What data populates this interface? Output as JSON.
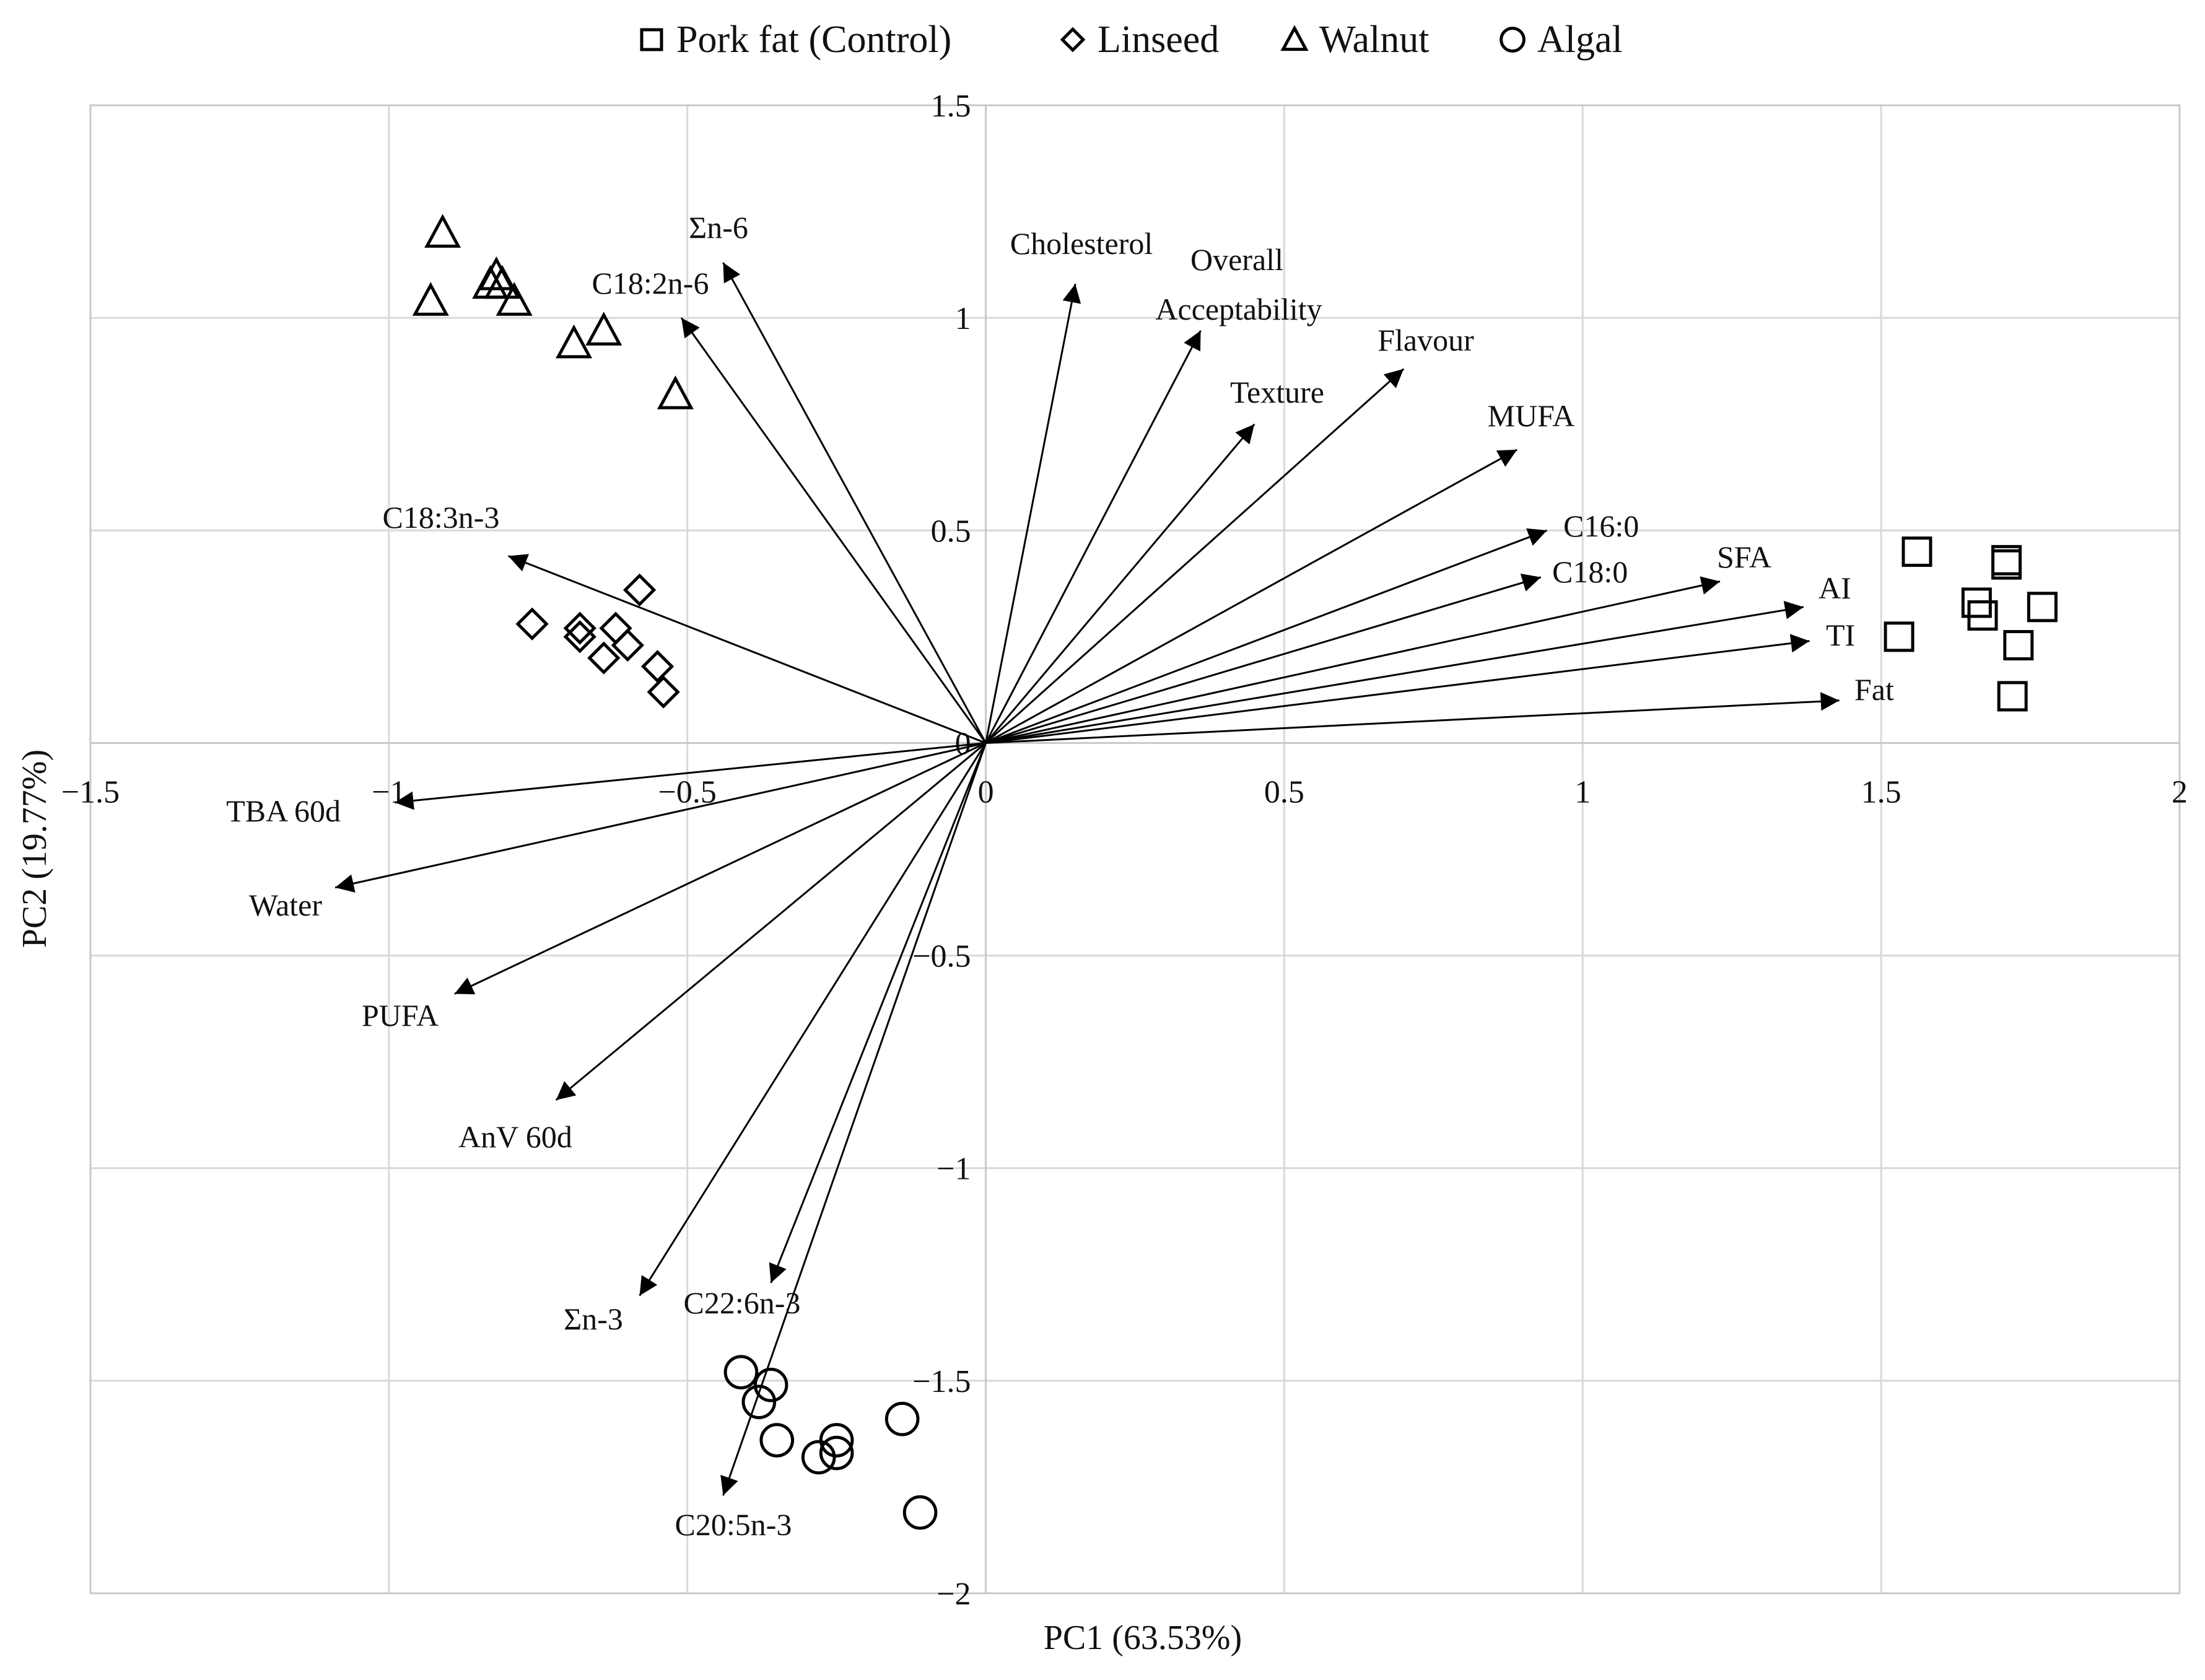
{
  "chart_data": {
    "type": "scatter",
    "subtype": "pca-biplot",
    "title": "",
    "xlabel": "PC1 (63.53%)",
    "ylabel": "PC2 (19.77%)",
    "xlim": [
      -1.5,
      2
    ],
    "ylim": [
      -2,
      1.5
    ],
    "x_ticks": [
      -1.5,
      -1,
      -0.5,
      0,
      0.5,
      1,
      1.5,
      2
    ],
    "y_ticks": [
      -2,
      -1.5,
      -1,
      -0.5,
      0,
      0.5,
      1,
      1.5
    ],
    "x_tick_labels": [
      "−1.5",
      "−1",
      "−0.5",
      "0",
      "0.5",
      "1",
      "1.5",
      "2"
    ],
    "y_tick_labels": [
      "−2",
      "−1.5",
      "−1",
      "−0.5",
      "0",
      "0.5",
      "1",
      "1.5"
    ],
    "grid": true,
    "legend_position": "top",
    "series": [
      {
        "name": "Pork fat (Control)",
        "marker": "square",
        "points": [
          {
            "x": 1.56,
            "y": 0.45
          },
          {
            "x": 1.71,
            "y": 0.43
          },
          {
            "x": 1.71,
            "y": 0.42
          },
          {
            "x": 1.66,
            "y": 0.33
          },
          {
            "x": 1.67,
            "y": 0.3
          },
          {
            "x": 1.77,
            "y": 0.32
          },
          {
            "x": 1.53,
            "y": 0.25
          },
          {
            "x": 1.73,
            "y": 0.23
          },
          {
            "x": 1.72,
            "y": 0.11
          }
        ]
      },
      {
        "name": "Linseed",
        "marker": "diamond",
        "points": [
          {
            "x": -0.58,
            "y": 0.36
          },
          {
            "x": -0.76,
            "y": 0.28
          },
          {
            "x": -0.68,
            "y": 0.27
          },
          {
            "x": -0.62,
            "y": 0.27
          },
          {
            "x": -0.68,
            "y": 0.25
          },
          {
            "x": -0.6,
            "y": 0.23
          },
          {
            "x": -0.64,
            "y": 0.2
          },
          {
            "x": -0.55,
            "y": 0.18
          },
          {
            "x": -0.54,
            "y": 0.12
          }
        ]
      },
      {
        "name": "Walnut",
        "marker": "triangle",
        "points": [
          {
            "x": -0.91,
            "y": 1.2
          },
          {
            "x": -0.82,
            "y": 1.1
          },
          {
            "x": -0.83,
            "y": 1.08
          },
          {
            "x": -0.81,
            "y": 1.08
          },
          {
            "x": -0.93,
            "y": 1.04
          },
          {
            "x": -0.79,
            "y": 1.04
          },
          {
            "x": -0.64,
            "y": 0.97
          },
          {
            "x": -0.69,
            "y": 0.94
          },
          {
            "x": -0.52,
            "y": 0.82
          }
        ]
      },
      {
        "name": "Algal",
        "marker": "circle",
        "points": [
          {
            "x": -0.41,
            "y": -1.48
          },
          {
            "x": -0.36,
            "y": -1.51
          },
          {
            "x": -0.38,
            "y": -1.55
          },
          {
            "x": -0.35,
            "y": -1.64
          },
          {
            "x": -0.25,
            "y": -1.64
          },
          {
            "x": -0.25,
            "y": -1.67
          },
          {
            "x": -0.28,
            "y": -1.68
          },
          {
            "x": -0.14,
            "y": -1.59
          },
          {
            "x": -0.11,
            "y": -1.81
          }
        ]
      }
    ],
    "loadings": [
      {
        "name": "Σn-6",
        "x": -0.44,
        "y": 1.13
      },
      {
        "name": "C18:2n-6",
        "x": -0.51,
        "y": 1.0
      },
      {
        "name": "Cholesterol",
        "x": 0.15,
        "y": 1.08
      },
      {
        "name": "Overall Acceptability",
        "x": 0.36,
        "y": 0.97
      },
      {
        "name": "Flavour",
        "x": 0.7,
        "y": 0.88
      },
      {
        "name": "Texture",
        "x": 0.45,
        "y": 0.75
      },
      {
        "name": "MUFA",
        "x": 0.89,
        "y": 0.69
      },
      {
        "name": "C16:0",
        "x": 0.94,
        "y": 0.5
      },
      {
        "name": "C18:0",
        "x": 0.93,
        "y": 0.39
      },
      {
        "name": "SFA",
        "x": 1.23,
        "y": 0.38
      },
      {
        "name": "AI",
        "x": 1.37,
        "y": 0.32
      },
      {
        "name": "TI",
        "x": 1.38,
        "y": 0.24
      },
      {
        "name": "Fat",
        "x": 1.43,
        "y": 0.1
      },
      {
        "name": "C18:3n-3",
        "x": -0.8,
        "y": 0.44
      },
      {
        "name": "TBA 60d",
        "x": -0.99,
        "y": -0.14
      },
      {
        "name": "Water",
        "x": -1.09,
        "y": -0.34
      },
      {
        "name": "PUFA",
        "x": -0.89,
        "y": -0.59
      },
      {
        "name": "AnV 60d",
        "x": -0.72,
        "y": -0.84
      },
      {
        "name": "Σn-3",
        "x": -0.58,
        "y": -1.3
      },
      {
        "name": "C22:6n-3",
        "x": -0.36,
        "y": -1.27
      },
      {
        "name": "C20:5n-3",
        "x": -0.44,
        "y": -1.77
      }
    ]
  }
}
